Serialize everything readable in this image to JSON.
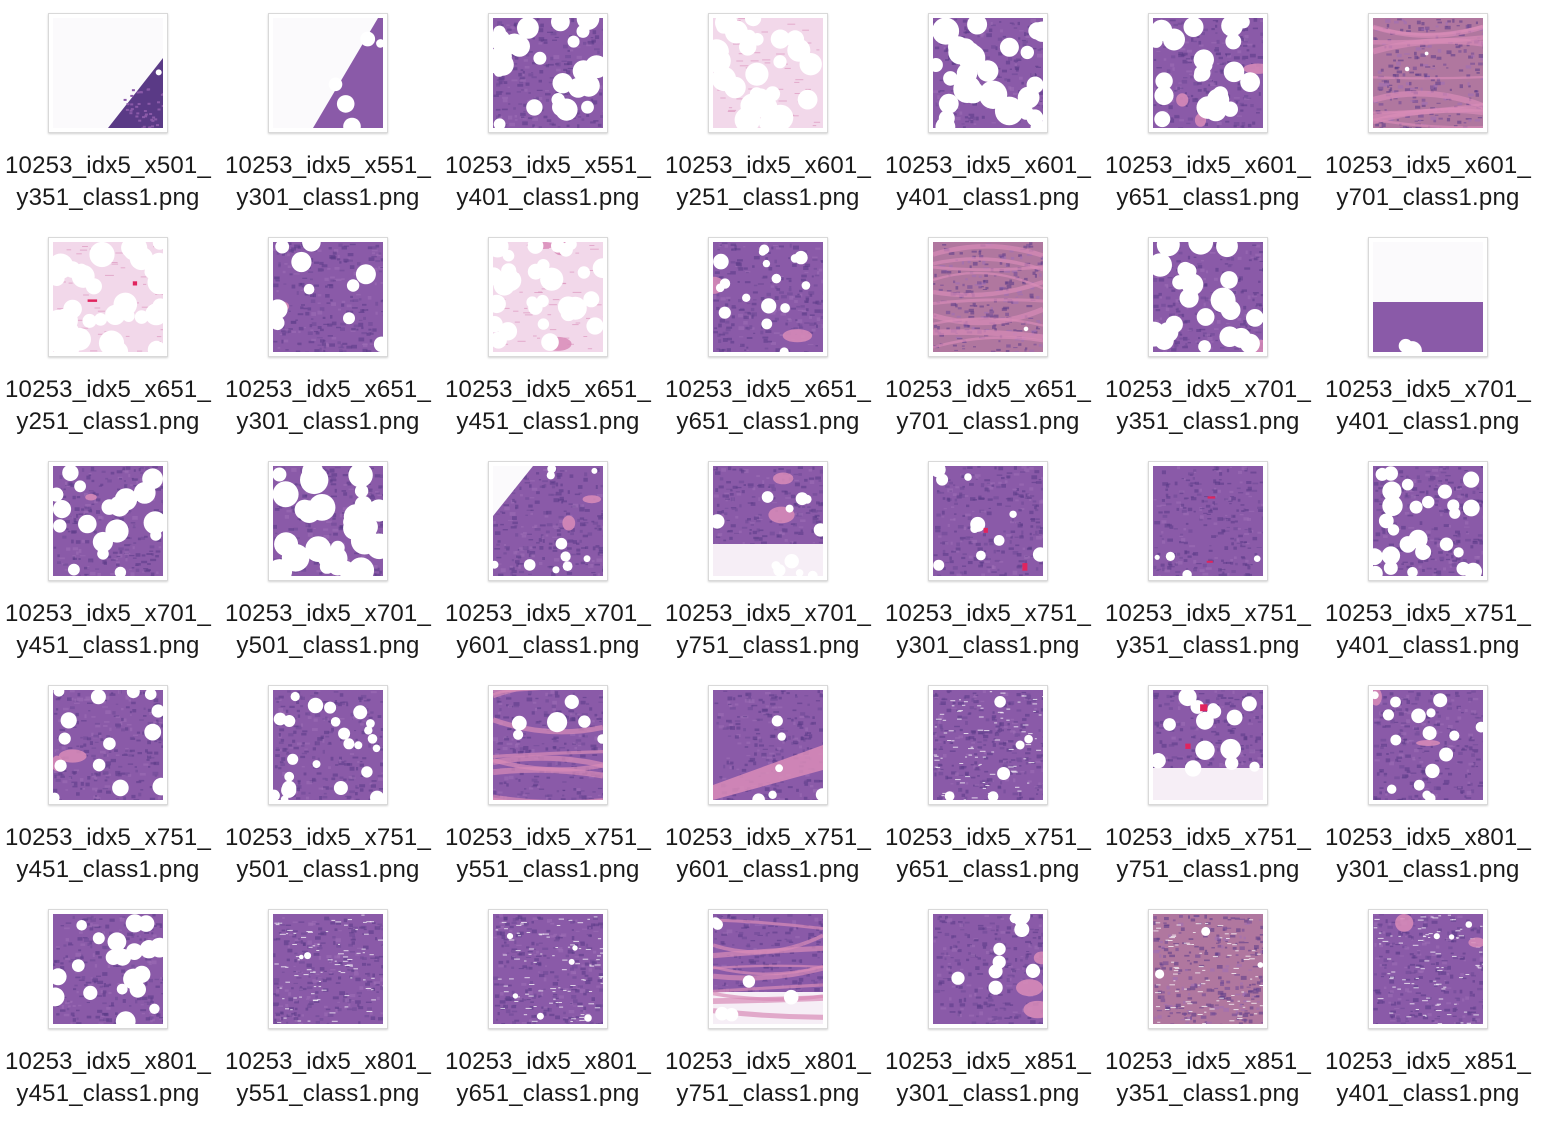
{
  "colors": {
    "purple_dark": "#5a3a86",
    "purple_mid": "#8a5aa8",
    "pink": "#d98cb8",
    "pink_light": "#f2d8ea",
    "red": "#e0245e",
    "white": "#ffffff"
  },
  "files": [
    {
      "line1": "10253_idx5_x501_",
      "line2": "y351_class1.png",
      "thumb": "mostly-white-corner-tissue-icon"
    },
    {
      "line1": "10253_idx5_x551_",
      "line2": "y301_class1.png",
      "thumb": "white-diagonal-fat-icon"
    },
    {
      "line1": "10253_idx5_x551_",
      "line2": "y401_class1.png",
      "thumb": "adipocytes-purple-icon"
    },
    {
      "line1": "10253_idx5_x601_",
      "line2": "y251_class1.png",
      "thumb": "pale-pink-fat-icon"
    },
    {
      "line1": "10253_idx5_x601_",
      "line2": "y401_class1.png",
      "thumb": "dense-fat-globules-icon"
    },
    {
      "line1": "10253_idx5_x601_",
      "line2": "y651_class1.png",
      "thumb": "fat-and-stroma-icon"
    },
    {
      "line1": "10253_idx5_x601_",
      "line2": "y701_class1.png",
      "thumb": "pink-stroma-icon"
    },
    {
      "line1": "10253_idx5_x651_",
      "line2": "y251_class1.png",
      "thumb": "pink-fat-red-streak-icon"
    },
    {
      "line1": "10253_idx5_x651_",
      "line2": "y301_class1.png",
      "thumb": "purple-tissue-fat-bottom-icon"
    },
    {
      "line1": "10253_idx5_x651_",
      "line2": "y451_class1.png",
      "thumb": "pink-adipose-icon"
    },
    {
      "line1": "10253_idx5_x651_",
      "line2": "y651_class1.png",
      "thumb": "purple-scattered-fat-icon"
    },
    {
      "line1": "10253_idx5_x651_",
      "line2": "y701_class1.png",
      "thumb": "pink-purple-stroma-icon"
    },
    {
      "line1": "10253_idx5_x701_",
      "line2": "y351_class1.png",
      "thumb": "fat-clusters-icon"
    },
    {
      "line1": "10253_idx5_x701_",
      "line2": "y401_class1.png",
      "thumb": "fat-top-tissue-bottom-icon"
    },
    {
      "line1": "10253_idx5_x701_",
      "line2": "y451_class1.png",
      "thumb": "purple-fat-mix-icon"
    },
    {
      "line1": "10253_idx5_x701_",
      "line2": "y501_class1.png",
      "thumb": "large-fat-globules-icon"
    },
    {
      "line1": "10253_idx5_x701_",
      "line2": "y601_class1.png",
      "thumb": "corner-white-tissue-icon"
    },
    {
      "line1": "10253_idx5_x701_",
      "line2": "y751_class1.png",
      "thumb": "tissue-top-fat-bottom-icon"
    },
    {
      "line1": "10253_idx5_x751_",
      "line2": "y301_class1.png",
      "thumb": "purple-sparse-fat-icon"
    },
    {
      "line1": "10253_idx5_x751_",
      "line2": "y351_class1.png",
      "thumb": "dense-purple-icon"
    },
    {
      "line1": "10253_idx5_x751_",
      "line2": "y401_class1.png",
      "thumb": "purple-round-fat-icon"
    },
    {
      "line1": "10253_idx5_x751_",
      "line2": "y451_class1.png",
      "thumb": "purple-fat-top-icon"
    },
    {
      "line1": "10253_idx5_x751_",
      "line2": "y501_class1.png",
      "thumb": "fat-dots-icon"
    },
    {
      "line1": "10253_idx5_x751_",
      "line2": "y551_class1.png",
      "thumb": "fibrous-purple-icon"
    },
    {
      "line1": "10253_idx5_x751_",
      "line2": "y601_class1.png",
      "thumb": "pink-band-stroma-icon"
    },
    {
      "line1": "10253_idx5_x751_",
      "line2": "y651_class1.png",
      "thumb": "dense-cellular-icon"
    },
    {
      "line1": "10253_idx5_x751_",
      "line2": "y751_class1.png",
      "thumb": "fat-bottom-icon"
    },
    {
      "line1": "10253_idx5_x801_",
      "line2": "y301_class1.png",
      "thumb": "purple-fat-scatter-icon"
    },
    {
      "line1": "10253_idx5_x801_",
      "line2": "y451_class1.png",
      "thumb": "fat-top-cellular-icon"
    },
    {
      "line1": "10253_idx5_x801_",
      "line2": "y551_class1.png",
      "thumb": "dense-streaked-icon"
    },
    {
      "line1": "10253_idx5_x801_",
      "line2": "y651_class1.png",
      "thumb": "dense-purple-2-icon"
    },
    {
      "line1": "10253_idx5_x801_",
      "line2": "y751_class1.png",
      "thumb": "tissue-white-bottom-icon"
    },
    {
      "line1": "10253_idx5_x851_",
      "line2": "y301_class1.png",
      "thumb": "pink-purple-fat-icon"
    },
    {
      "line1": "10253_idx5_x851_",
      "line2": "y351_class1.png",
      "thumb": "pink-stroma-2-icon"
    },
    {
      "line1": "10253_idx5_x851_",
      "line2": "y401_class1.png",
      "thumb": "dense-streaked-2-icon"
    }
  ]
}
